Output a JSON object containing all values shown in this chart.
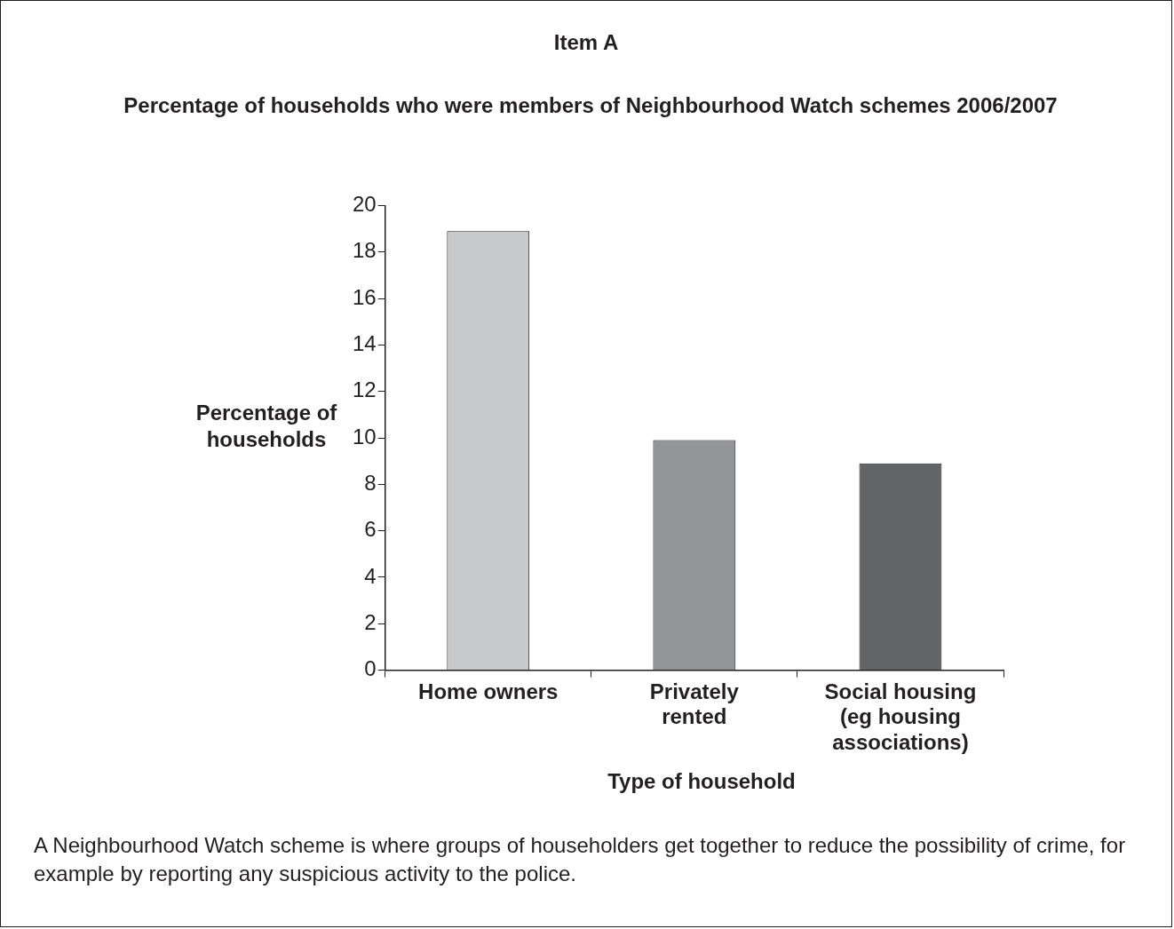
{
  "chart_data": {
    "type": "bar",
    "title": "Item A",
    "subtitle": "Percentage of households who were members of Neighbourhood Watch schemes 2006/2007",
    "xlabel": "Type of household",
    "ylabel": "Percentage of households",
    "categories": [
      "Home owners",
      "Privately rented",
      "Social housing (eg housing associations)"
    ],
    "values": [
      18.9,
      9.9,
      8.9
    ],
    "colors": [
      "#c8c9cb",
      "#939598",
      "#636466"
    ],
    "ylim": [
      0,
      20
    ],
    "yticks": [
      0,
      2,
      4,
      6,
      8,
      10,
      12,
      14,
      16,
      18,
      20
    ],
    "grid": false,
    "legend": false,
    "annotations": [
      "A Neighbourhood Watch scheme is where groups of householders get together to reduce the possibility of crime, for example by reporting any suspicious activity to the police."
    ]
  }
}
